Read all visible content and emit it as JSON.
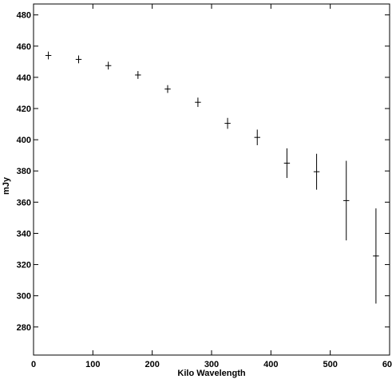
{
  "chart_data": {
    "type": "scatter",
    "title": "",
    "xlabel": "Kilo Wavelength",
    "ylabel": "mJy",
    "xlim": [
      0,
      600
    ],
    "ylim": [
      262,
      487
    ],
    "xticks": [
      0,
      100,
      200,
      300,
      400,
      500,
      600
    ],
    "yticks": [
      280,
      300,
      320,
      340,
      360,
      380,
      400,
      420,
      440,
      460,
      480
    ],
    "grid": false,
    "legend": "none",
    "marker": "plus with vertical error bar",
    "color": "#000000",
    "series": [
      {
        "points": [
          {
            "x": 25,
            "y": 454,
            "x_halfwidth": 5,
            "y_err": 2.5
          },
          {
            "x": 76,
            "y": 451.5,
            "x_halfwidth": 5,
            "y_err": 2.5
          },
          {
            "x": 126,
            "y": 447.5,
            "x_halfwidth": 5,
            "y_err": 2.5
          },
          {
            "x": 176,
            "y": 441.5,
            "x_halfwidth": 5,
            "y_err": 2.5
          },
          {
            "x": 226,
            "y": 432.5,
            "x_halfwidth": 5,
            "y_err": 2.5
          },
          {
            "x": 277,
            "y": 424,
            "x_halfwidth": 5,
            "y_err": 3
          },
          {
            "x": 327,
            "y": 410.5,
            "x_halfwidth": 5,
            "y_err": 3.5
          },
          {
            "x": 377,
            "y": 401.5,
            "x_halfwidth": 5,
            "y_err": 5
          },
          {
            "x": 427,
            "y": 385,
            "x_halfwidth": 5,
            "y_err": 9.5
          },
          {
            "x": 477,
            "y": 379.5,
            "x_halfwidth": 5,
            "y_err": 11.5
          },
          {
            "x": 527,
            "y": 361,
            "x_halfwidth": 5,
            "y_err": 25.5
          },
          {
            "x": 577,
            "y": 325.5,
            "x_halfwidth": 5,
            "y_err": 30.5
          }
        ]
      }
    ]
  }
}
